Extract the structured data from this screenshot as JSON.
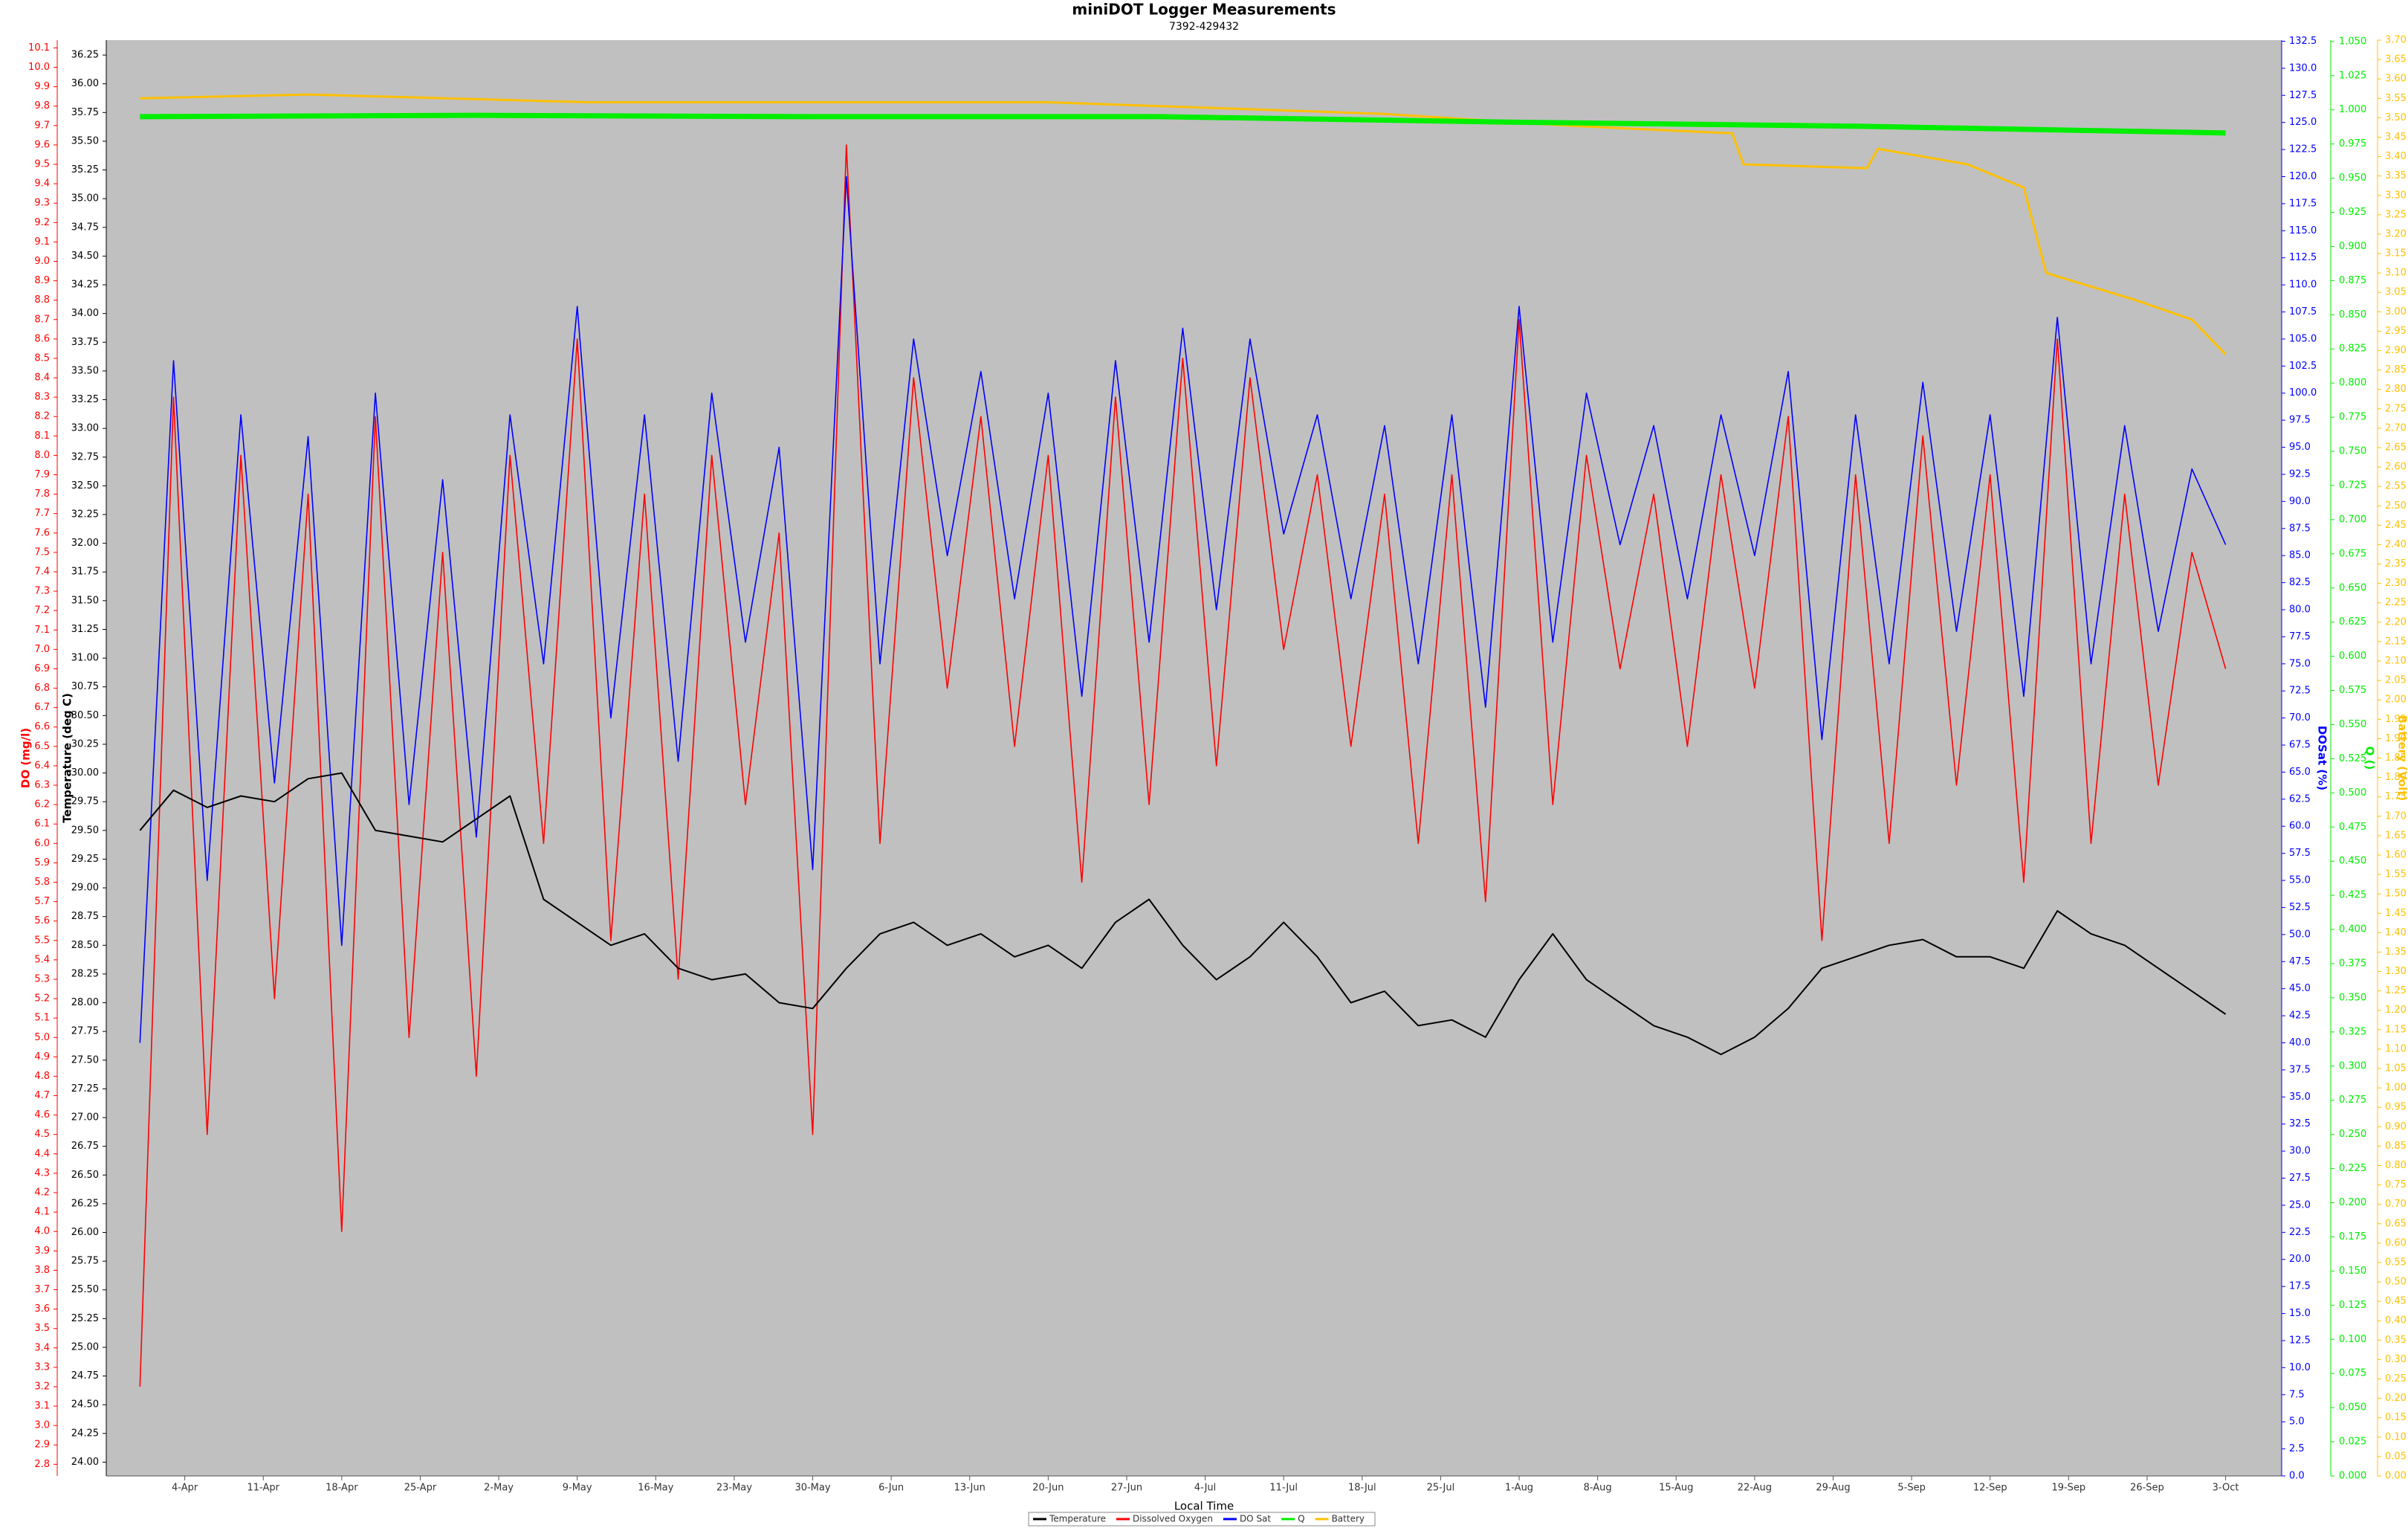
{
  "chart_data": {
    "type": "line",
    "title": "miniDOT Logger Measurements",
    "subtitle": "7392-429432",
    "x_label": "Local Time",
    "xlim": [
      "28-Mar",
      "8-Oct"
    ],
    "xticks": [
      "4-Apr",
      "11-Apr",
      "18-Apr",
      "25-Apr",
      "2-May",
      "9-May",
      "16-May",
      "23-May",
      "30-May",
      "6-Jun",
      "13-Jun",
      "20-Jun",
      "27-Jun",
      "4-Jul",
      "11-Jul",
      "18-Jul",
      "25-Jul",
      "1-Aug",
      "8-Aug",
      "15-Aug",
      "22-Aug",
      "29-Aug",
      "5-Sep",
      "12-Sep",
      "19-Sep",
      "26-Sep",
      "3-Oct"
    ],
    "grid": false,
    "legend": "bottom",
    "x": [
      "31-Mar",
      "3-Apr",
      "6-Apr",
      "9-Apr",
      "12-Apr",
      "15-Apr",
      "18-Apr",
      "21-Apr",
      "24-Apr",
      "27-Apr",
      "30-Apr",
      "3-May",
      "6-May",
      "9-May",
      "12-May",
      "15-May",
      "18-May",
      "21-May",
      "24-May",
      "27-May",
      "30-May",
      "2-Jun",
      "5-Jun",
      "8-Jun",
      "11-Jun",
      "14-Jun",
      "17-Jun",
      "20-Jun",
      "23-Jun",
      "26-Jun",
      "29-Jun",
      "2-Jul",
      "5-Jul",
      "8-Jul",
      "11-Jul",
      "14-Jul",
      "17-Jul",
      "20-Jul",
      "23-Jul",
      "26-Jul",
      "29-Jul",
      "1-Aug",
      "4-Aug",
      "7-Aug",
      "10-Aug",
      "13-Aug",
      "16-Aug",
      "19-Aug",
      "22-Aug",
      "25-Aug",
      "28-Aug",
      "31-Aug",
      "3-Sep",
      "6-Sep",
      "9-Sep",
      "12-Sep",
      "15-Sep",
      "18-Sep",
      "21-Sep",
      "24-Sep",
      "27-Sep",
      "30-Sep",
      "3-Oct"
    ],
    "series": [
      {
        "name": "Temperature",
        "color": "#000000",
        "axis_side": "left",
        "y_label": "Temperature (deg C)",
        "ylim": [
          23.88,
          36.38
        ],
        "yticks": [
          {
            "value": 24,
            "label": "24.00"
          },
          24.25,
          {
            "value": 24.5,
            "label": "24.50"
          },
          24.75,
          {
            "value": 25,
            "label": "25.00"
          },
          25.25,
          {
            "value": 25.5,
            "label": "25.50"
          },
          25.75,
          {
            "value": 26,
            "label": "26.00"
          },
          26.25,
          {
            "value": 26.5,
            "label": "26.50"
          },
          26.75,
          {
            "value": 27,
            "label": "27.00"
          },
          27.25,
          {
            "value": 27.5,
            "label": "27.50"
          },
          27.75,
          {
            "value": 28,
            "label": "28.00"
          },
          28.25,
          {
            "value": 28.5,
            "label": "28.50"
          },
          28.75,
          {
            "value": 29,
            "label": "29.00"
          },
          29.25,
          {
            "value": 29.5,
            "label": "29.50"
          },
          29.75,
          {
            "value": 30,
            "label": "30.00"
          },
          30.25,
          {
            "value": 30.5,
            "label": "30.50"
          },
          30.75,
          {
            "value": 31,
            "label": "31.00"
          },
          31.25,
          {
            "value": 31.5,
            "label": "31.50"
          },
          31.75,
          {
            "value": 32,
            "label": "32.00"
          },
          32.25,
          {
            "value": 32.5,
            "label": "32.50"
          },
          32.75,
          {
            "value": 33,
            "label": "33.00"
          },
          33.25,
          {
            "value": 33.5,
            "label": "33.50"
          },
          33.75,
          {
            "value": 34,
            "label": "34.00"
          },
          34.25,
          {
            "value": 34.5,
            "label": "34.50"
          },
          34.75,
          {
            "value": 35,
            "label": "35.00"
          },
          35.25,
          {
            "value": 35.5,
            "label": "35.50"
          },
          35.75,
          {
            "value": 36,
            "label": "36.00"
          },
          36.25
        ],
        "values": [
          29.5,
          29.85,
          29.7,
          29.8,
          29.75,
          29.95,
          30.0,
          29.5,
          29.45,
          29.4,
          29.6,
          29.8,
          28.9,
          28.7,
          28.5,
          28.6,
          28.3,
          28.2,
          28.25,
          28.0,
          27.95,
          28.3,
          28.6,
          28.7,
          28.5,
          28.6,
          28.4,
          28.5,
          28.3,
          28.7,
          28.9,
          28.5,
          28.2,
          28.4,
          28.7,
          28.4,
          28.0,
          28.1,
          27.8,
          27.85,
          27.7,
          28.2,
          28.6,
          28.2,
          28.0,
          27.8,
          27.7,
          27.55,
          27.7,
          27.95,
          28.3,
          28.4,
          28.5,
          28.55,
          28.4,
          28.4,
          28.3,
          28.8,
          28.6,
          28.5,
          28.3,
          28.1,
          27.9
        ]
      },
      {
        "name": "Dissolved Oxygen",
        "color": "#ff0000",
        "axis_side": "left",
        "y_label": "DO (mg/l)",
        "ylim": [
          2.74,
          10.14
        ],
        "yticks": [
          2.8,
          2.9,
          {
            "value": 3,
            "label": "3.0"
          },
          3.1,
          3.2,
          3.3,
          3.4,
          3.5,
          3.6,
          3.7,
          3.8,
          3.9,
          {
            "value": 4,
            "label": "4.0"
          },
          4.1,
          4.2,
          4.3,
          4.4,
          4.5,
          4.6,
          4.7,
          4.8,
          4.9,
          {
            "value": 5,
            "label": "5.0"
          },
          5.1,
          5.2,
          5.3,
          5.4,
          5.5,
          5.6,
          5.7,
          5.8,
          5.9,
          {
            "value": 6,
            "label": "6.0"
          },
          6.1,
          6.2,
          6.3,
          6.4,
          6.5,
          6.6,
          6.7,
          6.8,
          6.9,
          {
            "value": 7,
            "label": "7.0"
          },
          7.1,
          7.2,
          7.3,
          7.4,
          7.5,
          7.6,
          7.7,
          7.8,
          7.9,
          {
            "value": 8,
            "label": "8.0"
          },
          8.1,
          8.2,
          8.3,
          8.4,
          8.5,
          8.6,
          8.7,
          8.8,
          8.9,
          {
            "value": 9,
            "label": "9.0"
          },
          9.1,
          9.2,
          9.3,
          9.4,
          9.5,
          9.6,
          9.7,
          9.8,
          9.9,
          {
            "value": 10,
            "label": "10.0"
          },
          10.1
        ],
        "values": [
          3.2,
          8.3,
          4.5,
          8.0,
          5.2,
          7.8,
          4.0,
          8.2,
          5.0,
          7.5,
          4.8,
          8.0,
          6.0,
          8.6,
          5.5,
          7.8,
          5.3,
          8.0,
          6.2,
          7.6,
          4.5,
          9.6,
          6.0,
          8.4,
          6.8,
          8.2,
          6.5,
          8.0,
          5.8,
          8.3,
          6.2,
          8.5,
          6.4,
          8.4,
          7.0,
          7.9,
          6.5,
          7.8,
          6.0,
          7.9,
          5.7,
          8.7,
          6.2,
          8.0,
          6.9,
          7.8,
          6.5,
          7.9,
          6.8,
          8.2,
          5.5,
          7.9,
          6.0,
          8.1,
          6.3,
          7.9,
          5.8,
          8.6,
          6.0,
          7.8,
          6.3,
          7.5,
          6.9
        ]
      },
      {
        "name": "DO Sat",
        "color": "#0000ff",
        "axis_side": "right",
        "y_label": "DOSat (%)",
        "ylim": [
          0,
          132.6
        ],
        "yticks": [
          {
            "value": 0,
            "label": "0.0"
          },
          2.5,
          {
            "value": 5,
            "label": "5.0"
          },
          7.5,
          {
            "value": 10,
            "label": "10.0"
          },
          12.5,
          {
            "value": 15,
            "label": "15.0"
          },
          17.5,
          {
            "value": 20,
            "label": "20.0"
          },
          22.5,
          {
            "value": 25,
            "label": "25.0"
          },
          27.5,
          {
            "value": 30,
            "label": "30.0"
          },
          32.5,
          {
            "value": 35,
            "label": "35.0"
          },
          37.5,
          {
            "value": 40,
            "label": "40.0"
          },
          42.5,
          {
            "value": 45,
            "label": "45.0"
          },
          47.5,
          {
            "value": 50,
            "label": "50.0"
          },
          52.5,
          {
            "value": 55,
            "label": "55.0"
          },
          57.5,
          {
            "value": 60,
            "label": "60.0"
          },
          62.5,
          {
            "value": 65,
            "label": "65.0"
          },
          67.5,
          {
            "value": 70,
            "label": "70.0"
          },
          72.5,
          {
            "value": 75,
            "label": "75.0"
          },
          77.5,
          {
            "value": 80,
            "label": "80.0"
          },
          82.5,
          {
            "value": 85,
            "label": "85.0"
          },
          87.5,
          {
            "value": 90,
            "label": "90.0"
          },
          92.5,
          {
            "value": 95,
            "label": "95.0"
          },
          97.5,
          {
            "value": 100,
            "label": "100.0"
          },
          102.5,
          {
            "value": 105,
            "label": "105.0"
          },
          107.5,
          {
            "value": 110,
            "label": "110.0"
          },
          112.5,
          {
            "value": 115,
            "label": "115.0"
          },
          117.5,
          {
            "value": 120,
            "label": "120.0"
          },
          122.5,
          {
            "value": 125,
            "label": "125.0"
          },
          127.5,
          {
            "value": 130,
            "label": "130.0"
          },
          132.5
        ],
        "values": [
          40,
          103,
          55,
          98,
          64,
          96,
          49,
          100,
          62,
          92,
          59,
          98,
          75,
          108,
          70,
          98,
          66,
          100,
          77,
          95,
          56,
          120,
          75,
          105,
          85,
          102,
          81,
          100,
          72,
          103,
          77,
          106,
          80,
          105,
          87,
          98,
          81,
          97,
          75,
          98,
          71,
          108,
          77,
          100,
          86,
          97,
          81,
          98,
          85,
          102,
          68,
          98,
          75,
          101,
          78,
          98,
          72,
          107,
          75,
          97,
          78,
          93,
          86
        ]
      },
      {
        "name": "Q",
        "color": "#00ee00",
        "axis_side": "right",
        "y_label": "Q ()",
        "ylim": [
          0,
          1.051
        ],
        "yticks": [
          {
            "value": 0,
            "label": "0.000"
          },
          0.025,
          {
            "value": 0.05,
            "label": "0.050"
          },
          0.075,
          {
            "value": 0.1,
            "label": "0.100"
          },
          0.125,
          {
            "value": 0.15,
            "label": "0.150"
          },
          0.175,
          {
            "value": 0.2,
            "label": "0.200"
          },
          0.225,
          {
            "value": 0.25,
            "label": "0.250"
          },
          0.275,
          {
            "value": 0.3,
            "label": "0.300"
          },
          0.325,
          {
            "value": 0.35,
            "label": "0.350"
          },
          0.375,
          {
            "value": 0.4,
            "label": "0.400"
          },
          0.425,
          {
            "value": 0.45,
            "label": "0.450"
          },
          0.475,
          {
            "value": 0.5,
            "label": "0.500"
          },
          0.525,
          {
            "value": 0.55,
            "label": "0.550"
          },
          0.575,
          {
            "value": 0.6,
            "label": "0.600"
          },
          0.625,
          {
            "value": 0.65,
            "label": "0.650"
          },
          0.675,
          {
            "value": 0.7,
            "label": "0.700"
          },
          0.725,
          {
            "value": 0.75,
            "label": "0.750"
          },
          0.775,
          {
            "value": 0.8,
            "label": "0.800"
          },
          0.825,
          {
            "value": 0.85,
            "label": "0.850"
          },
          0.875,
          {
            "value": 0.9,
            "label": "0.900"
          },
          0.925,
          {
            "value": 0.95,
            "label": "0.950"
          },
          0.975,
          {
            "value": 1,
            "label": "1.000"
          },
          1.025,
          {
            "value": 1.05,
            "label": "1.050"
          }
        ],
        "x": [
          "31-Mar",
          "30-Apr",
          "30-May",
          "30-Jun",
          "31-Jul",
          "31-Aug",
          "3-Oct"
        ],
        "values": [
          0.995,
          0.996,
          0.995,
          0.995,
          0.991,
          0.988,
          0.983
        ]
      },
      {
        "name": "Battery",
        "color": "#ffc000",
        "axis_side": "right",
        "y_label": "Battery (Volt)",
        "ylim": [
          0,
          3.7
        ],
        "yticks": [
          {
            "value": 0,
            "label": "0.00"
          },
          0.05,
          {
            "value": 0.1,
            "label": "0.10"
          },
          0.15,
          {
            "value": 0.2,
            "label": "0.20"
          },
          0.25,
          {
            "value": 0.3,
            "label": "0.30"
          },
          0.35,
          {
            "value": 0.4,
            "label": "0.40"
          },
          0.45,
          {
            "value": 0.5,
            "label": "0.50"
          },
          0.55,
          {
            "value": 0.6,
            "label": "0.60"
          },
          0.65,
          {
            "value": 0.7,
            "label": "0.70"
          },
          0.75,
          {
            "value": 0.8,
            "label": "0.80"
          },
          0.85,
          {
            "value": 0.9,
            "label": "0.90"
          },
          0.95,
          {
            "value": 1,
            "label": "1.00"
          },
          1.05,
          {
            "value": 1.1,
            "label": "1.10"
          },
          1.15,
          {
            "value": 1.2,
            "label": "1.20"
          },
          1.25,
          {
            "value": 1.3,
            "label": "1.30"
          },
          1.35,
          {
            "value": 1.4,
            "label": "1.40"
          },
          1.45,
          {
            "value": 1.5,
            "label": "1.50"
          },
          1.55,
          {
            "value": 1.6,
            "label": "1.60"
          },
          1.65,
          {
            "value": 1.7,
            "label": "1.70"
          },
          1.75,
          {
            "value": 1.8,
            "label": "1.80"
          },
          1.85,
          {
            "value": 1.9,
            "label": "1.90"
          },
          1.95,
          {
            "value": 2,
            "label": "2.00"
          },
          2.05,
          {
            "value": 2.1,
            "label": "2.10"
          },
          2.15,
          {
            "value": 2.2,
            "label": "2.20"
          },
          2.25,
          {
            "value": 2.3,
            "label": "2.30"
          },
          2.35,
          {
            "value": 2.4,
            "label": "2.40"
          },
          2.45,
          {
            "value": 2.5,
            "label": "2.50"
          },
          2.55,
          {
            "value": 2.6,
            "label": "2.60"
          },
          2.65,
          {
            "value": 2.7,
            "label": "2.70"
          },
          2.75,
          {
            "value": 2.8,
            "label": "2.80"
          },
          2.85,
          {
            "value": 2.9,
            "label": "2.90"
          },
          2.95,
          {
            "value": 3,
            "label": "3.00"
          },
          3.05,
          {
            "value": 3.1,
            "label": "3.10"
          },
          3.15,
          {
            "value": 3.2,
            "label": "3.20"
          },
          3.25,
          {
            "value": 3.3,
            "label": "3.30"
          },
          3.35,
          {
            "value": 3.4,
            "label": "3.40"
          },
          3.45,
          {
            "value": 3.5,
            "label": "3.50"
          },
          3.55,
          {
            "value": 3.6,
            "label": "3.60"
          },
          3.65,
          {
            "value": 3.7,
            "label": "3.70"
          }
        ],
        "x": [
          "31-Mar",
          "15-Apr",
          "10-May",
          "20-Jun",
          "20-Jul",
          "5-Aug",
          "20-Aug",
          "21-Aug",
          "1-Sep",
          "2-Sep",
          "10-Sep",
          "15-Sep",
          "17-Sep",
          "25-Sep",
          "30-Sep",
          "3-Oct"
        ],
        "values": [
          3.55,
          3.56,
          3.54,
          3.54,
          3.51,
          3.48,
          3.46,
          3.38,
          3.37,
          3.42,
          3.38,
          3.32,
          3.1,
          3.03,
          2.98,
          2.89
        ]
      }
    ]
  }
}
